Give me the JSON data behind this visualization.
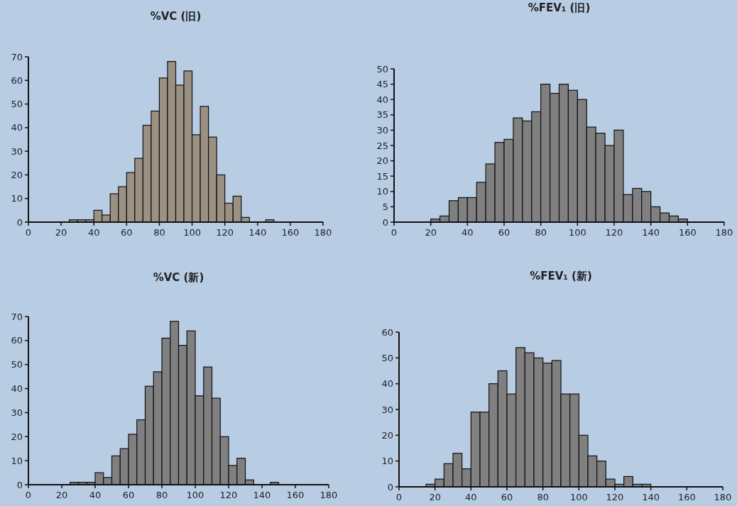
{
  "chart_data": [
    {
      "type": "histogram",
      "title": "%VC (旧)",
      "bins": [
        25,
        30,
        35,
        40,
        45,
        50,
        55,
        60,
        65,
        70,
        75,
        80,
        85,
        90,
        95,
        100,
        105,
        110,
        115,
        120,
        125,
        130,
        135,
        140,
        145,
        150
      ],
      "values": [
        1,
        1,
        1,
        5,
        3,
        12,
        15,
        21,
        27,
        41,
        47,
        61,
        68,
        58,
        64,
        37,
        49,
        36,
        20,
        8,
        11,
        2,
        0,
        0,
        1
      ],
      "color": "#9b9183",
      "xlim": [
        0,
        180
      ],
      "xticks": [
        0,
        20,
        40,
        60,
        80,
        100,
        120,
        140,
        160,
        180
      ],
      "ylim": [
        0,
        70
      ],
      "yticks": [
        0,
        10,
        20,
        30,
        40,
        50,
        60,
        70
      ]
    },
    {
      "type": "histogram",
      "title": "%FEV₁ (旧)",
      "bins": [
        20,
        25,
        30,
        35,
        40,
        45,
        50,
        55,
        60,
        65,
        70,
        75,
        80,
        85,
        90,
        95,
        100,
        105,
        110,
        115,
        120,
        125,
        130,
        135,
        140,
        145,
        150,
        155,
        160
      ],
      "values": [
        1,
        2,
        7,
        8,
        8,
        13,
        19,
        26,
        27,
        34,
        33,
        36,
        45,
        42,
        45,
        43,
        40,
        31,
        29,
        25,
        30,
        9,
        11,
        10,
        5,
        3,
        2,
        1
      ],
      "color": "#808080",
      "xlim": [
        0,
        180
      ],
      "xticks": [
        0,
        20,
        40,
        60,
        80,
        100,
        120,
        140,
        160,
        180
      ],
      "ylim": [
        0,
        50
      ],
      "yticks": [
        0,
        5,
        10,
        15,
        20,
        25,
        30,
        35,
        40,
        45,
        50
      ]
    },
    {
      "type": "histogram",
      "title": "%VC (新)",
      "bins": [
        25,
        30,
        35,
        40,
        45,
        50,
        55,
        60,
        65,
        70,
        75,
        80,
        85,
        90,
        95,
        100,
        105,
        110,
        115,
        120,
        125,
        130,
        135,
        140,
        145,
        150
      ],
      "values": [
        1,
        1,
        1,
        5,
        3,
        12,
        15,
        21,
        27,
        41,
        47,
        61,
        68,
        58,
        64,
        37,
        49,
        36,
        20,
        8,
        11,
        2,
        0,
        0,
        1
      ],
      "color": "#808080",
      "xlim": [
        0,
        180
      ],
      "xticks": [
        0,
        20,
        40,
        60,
        80,
        100,
        120,
        140,
        160,
        180
      ],
      "ylim": [
        0,
        70
      ],
      "yticks": [
        0,
        10,
        20,
        30,
        40,
        50,
        60,
        70
      ]
    },
    {
      "type": "histogram",
      "title": "%FEV₁ (新)",
      "bins": [
        15,
        20,
        25,
        30,
        35,
        40,
        45,
        50,
        55,
        60,
        65,
        70,
        75,
        80,
        85,
        90,
        95,
        100,
        105,
        110,
        115,
        120,
        125,
        130,
        135,
        140
      ],
      "values": [
        1,
        3,
        9,
        13,
        7,
        29,
        29,
        40,
        45,
        36,
        54,
        52,
        50,
        48,
        49,
        36,
        36,
        20,
        12,
        10,
        3,
        1,
        4,
        1,
        1
      ],
      "color": "#808080",
      "xlim": [
        0,
        180
      ],
      "xticks": [
        0,
        20,
        40,
        60,
        80,
        100,
        120,
        140,
        160,
        180
      ],
      "ylim": [
        0,
        60
      ],
      "yticks": [
        0,
        10,
        20,
        30,
        40,
        50,
        60
      ]
    }
  ]
}
